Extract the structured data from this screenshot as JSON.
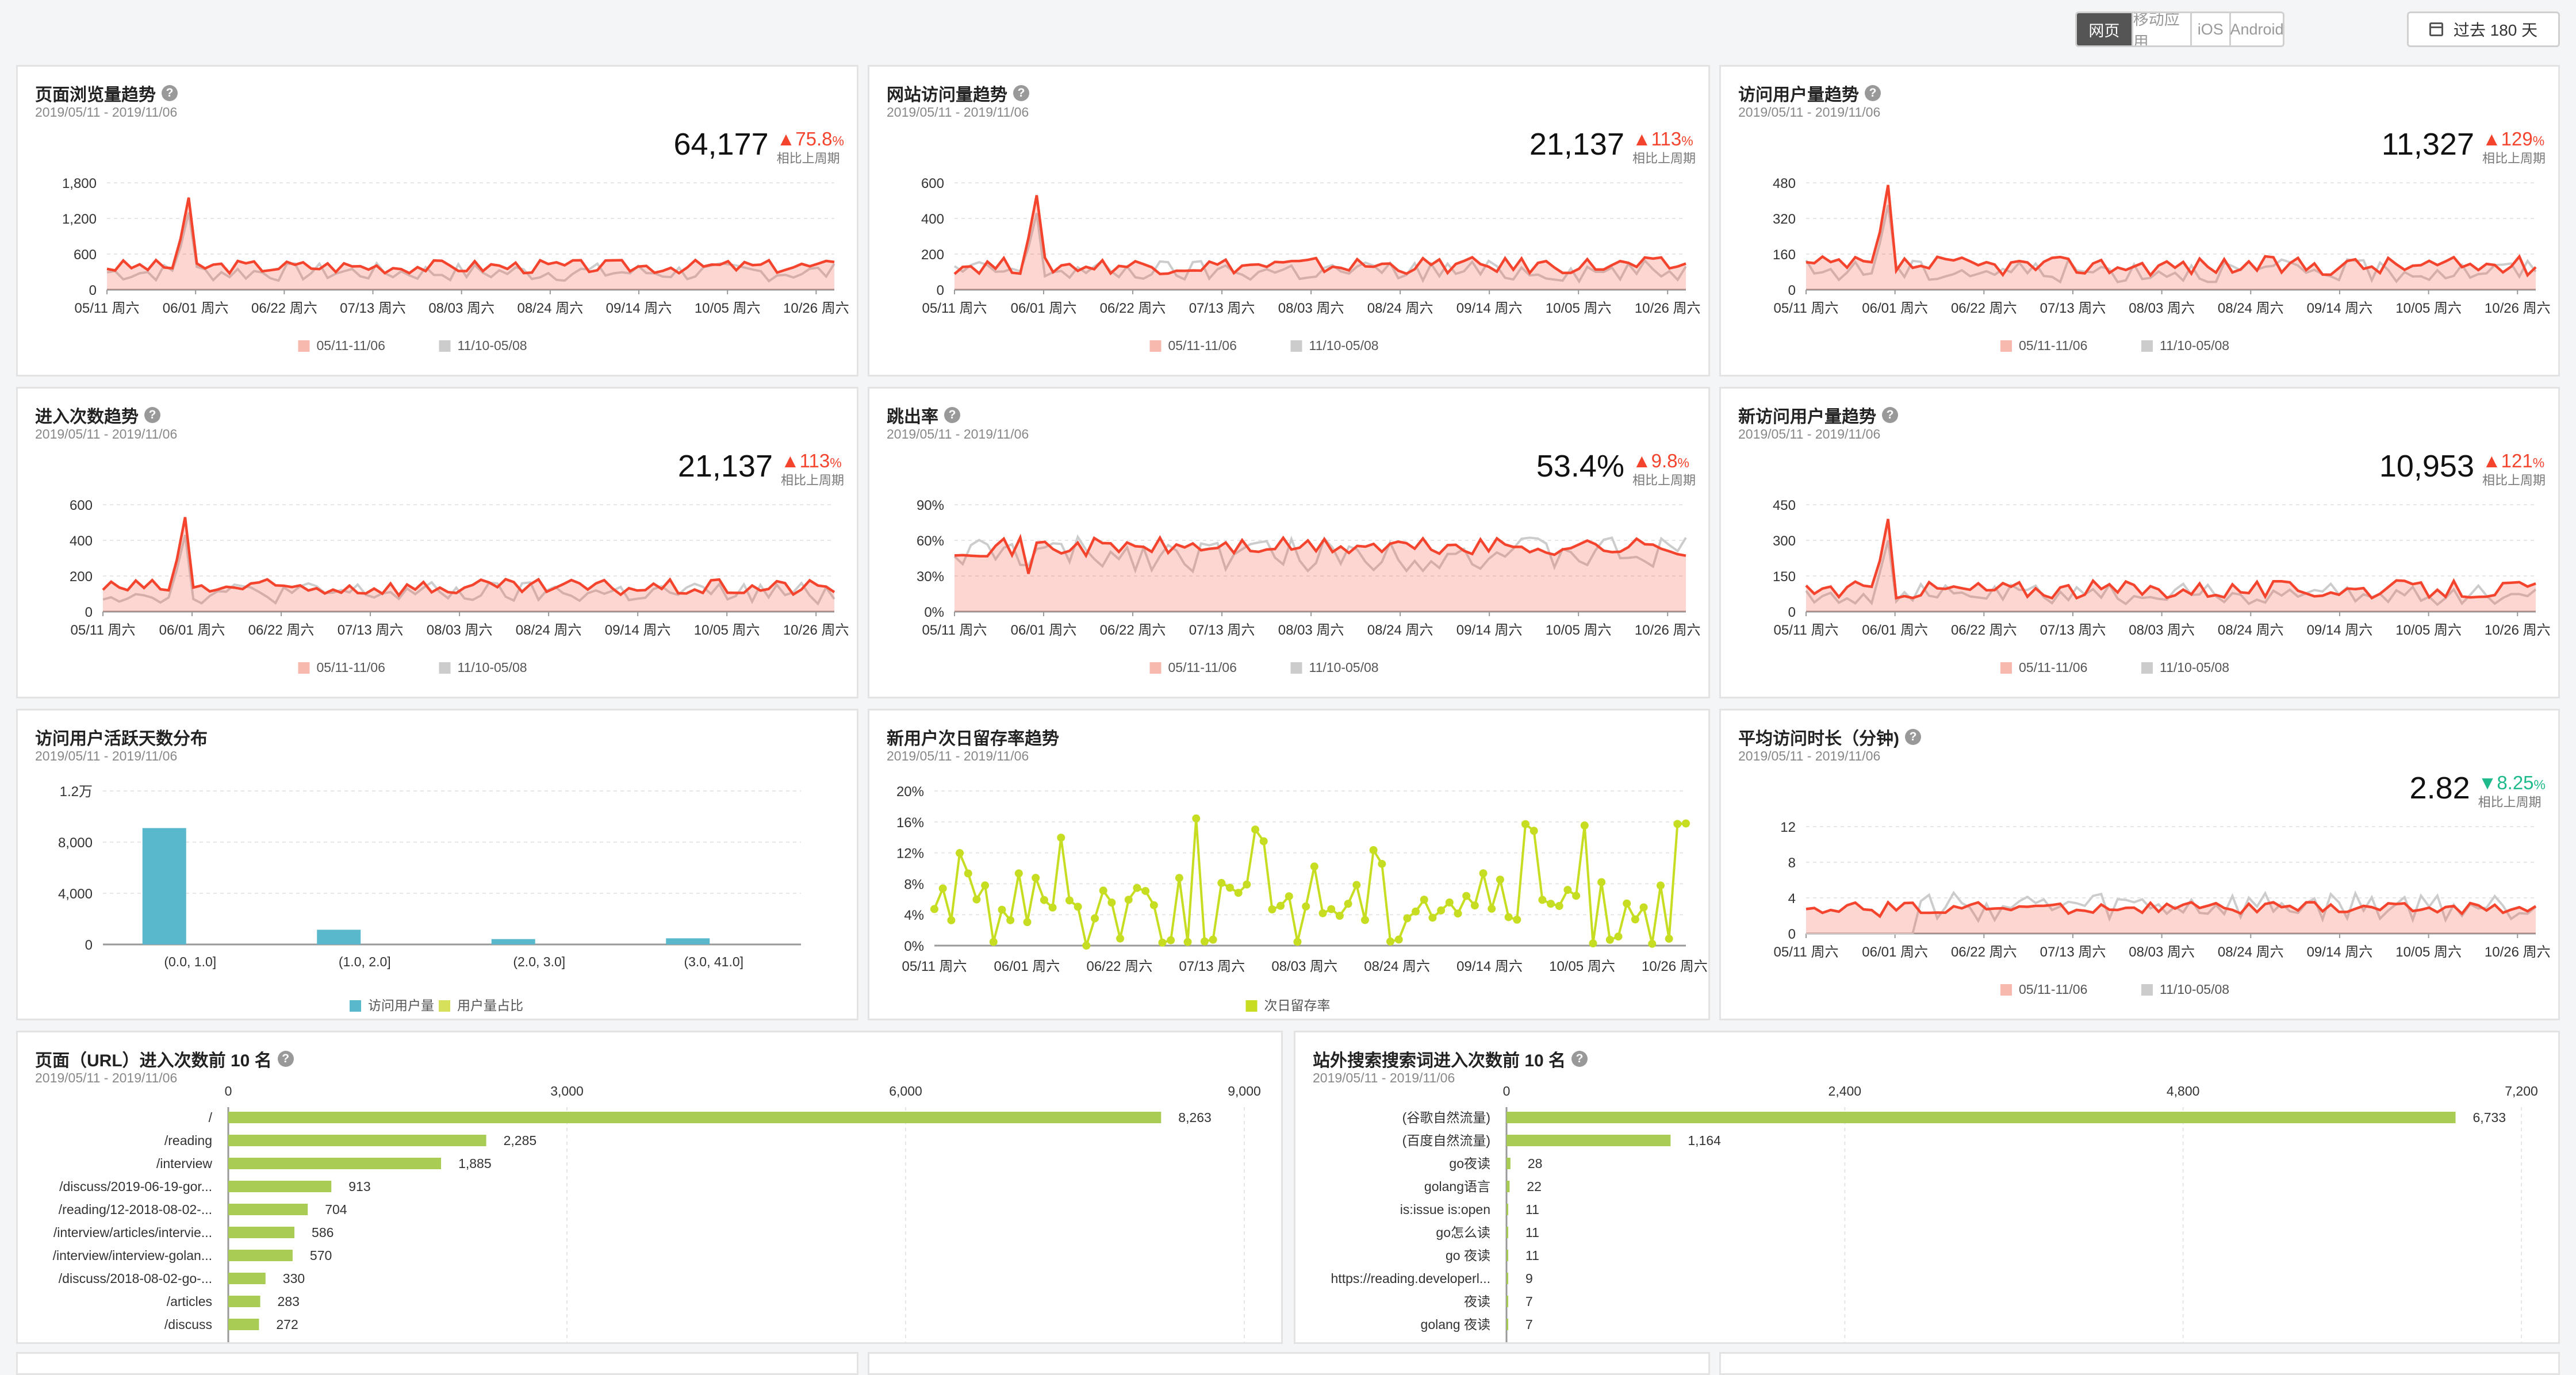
{
  "toolbar": {
    "tabs": [
      "网页",
      "移动应用",
      "iOS",
      "Android"
    ],
    "active_tab": "网页",
    "range_label": "过去 180 天"
  },
  "colors": {
    "accent": "#f5442d",
    "compare": "#cccccc",
    "bar_teal": "#5ab8cc",
    "bar_green": "#a9cd54",
    "retention": "#c6dd21",
    "down": "#1fba8c"
  },
  "trend_panels": [
    {
      "title": "页面浏览量趋势",
      "date": "2019/05/11 - 2019/11/06",
      "value": "64,177",
      "change": "75.8",
      "change_unit": "%",
      "direction": "up",
      "compare_label": "相比上周期",
      "legend": [
        "05/11-11/06",
        "11/10-05/08"
      ]
    },
    {
      "title": "网站访问量趋势",
      "date": "2019/05/11 - 2019/11/06",
      "value": "21,137",
      "change": "113",
      "change_unit": "%",
      "direction": "up",
      "compare_label": "相比上周期",
      "legend": [
        "05/11-11/06",
        "11/10-05/08"
      ]
    },
    {
      "title": "访问用户量趋势",
      "date": "2019/05/11 - 2019/11/06",
      "value": "11,327",
      "change": "129",
      "change_unit": "%",
      "direction": "up",
      "compare_label": "相比上周期",
      "legend": [
        "05/11-11/06",
        "11/10-05/08"
      ]
    },
    {
      "title": "进入次数趋势",
      "date": "2019/05/11 - 2019/11/06",
      "value": "21,137",
      "change": "113",
      "change_unit": "%",
      "direction": "up",
      "compare_label": "相比上周期",
      "legend": [
        "05/11-11/06",
        "11/10-05/08"
      ]
    },
    {
      "title": "跳出率",
      "date": "2019/05/11 - 2019/11/06",
      "value": "53.4%",
      "change": "9.8",
      "change_unit": "%",
      "direction": "up",
      "compare_label": "相比上周期",
      "legend": [
        "05/11-11/06",
        "11/10-05/08"
      ]
    },
    {
      "title": "新访问用户量趋势",
      "date": "2019/05/11 - 2019/11/06",
      "value": "10,953",
      "change": "121",
      "change_unit": "%",
      "direction": "up",
      "compare_label": "相比上周期",
      "legend": [
        "05/11-11/06",
        "11/10-05/08"
      ]
    },
    {
      "title": "平均访问时长（分钟)",
      "date": "2019/05/11 - 2019/11/06",
      "value": "2.82",
      "change": "8.25",
      "change_unit": "%",
      "direction": "down",
      "compare_label": "相比上周期",
      "legend": [
        "05/11-11/06",
        "11/10-05/08"
      ]
    }
  ],
  "bar_panel": {
    "title": "访问用户活跃天数分布",
    "date": "2019/05/11 - 2019/11/06",
    "legend": [
      "访问用户量",
      "用户量占比"
    ]
  },
  "retention_panel": {
    "title": "新用户次日留存率趋势",
    "date": "2019/05/11 - 2019/11/06",
    "legend": [
      "次日留存率"
    ]
  },
  "top_url_panel": {
    "title": "页面（URL）进入次数前 10 名",
    "date": "2019/05/11 - 2019/11/06"
  },
  "top_search_panel": {
    "title": "站外搜索搜索词进入次数前 10 名",
    "date": "2019/05/11 - 2019/11/06"
  },
  "chart_data": [
    {
      "id": "pv",
      "type": "line",
      "title": "页面浏览量趋势",
      "ylim": [
        0,
        1800
      ],
      "yticks": [
        "0",
        "600",
        "1,200",
        "1,800"
      ],
      "xticks": [
        "05/11 周六",
        "06/01 周六",
        "06/22 周六",
        "07/13 周六",
        "08/03 周六",
        "08/24 周六",
        "09/14 周六",
        "10/05 周六",
        "10/26 周六"
      ],
      "series": [
        {
          "name": "05/11-11/06",
          "base": 350,
          "spike": 1550,
          "min": 180,
          "max": 700
        },
        {
          "name": "11/10-05/08",
          "base": 250,
          "spike": 1300,
          "min": 0,
          "max": 700
        }
      ]
    },
    {
      "id": "visits",
      "type": "line",
      "title": "网站访问量趋势",
      "ylim": [
        0,
        600
      ],
      "yticks": [
        "0",
        "200",
        "400",
        "600"
      ],
      "xticks": [
        "05/11 周六",
        "06/01 周六",
        "06/22 周六",
        "07/13 周六",
        "08/03 周六",
        "08/24 周六",
        "09/14 周六",
        "10/05 周六",
        "10/26 周六"
      ],
      "series": [
        {
          "name": "05/11-11/06",
          "base": 110,
          "spike": 530,
          "min": 60,
          "max": 270
        },
        {
          "name": "11/10-05/08",
          "base": 80,
          "spike": 430,
          "min": 0,
          "max": 270
        }
      ]
    },
    {
      "id": "users",
      "type": "line",
      "title": "访问用户量趋势",
      "ylim": [
        0,
        480
      ],
      "yticks": [
        "0",
        "160",
        "320",
        "480"
      ],
      "xticks": [
        "05/11 周六",
        "06/01 周六",
        "06/22 周六",
        "07/13 周六",
        "08/03 周六",
        "08/24 周六",
        "09/14 周六",
        "10/05 周六",
        "10/26 周六"
      ],
      "series": [
        {
          "name": "05/11-11/06",
          "base": 85,
          "spike": 470,
          "min": 40,
          "max": 230
        },
        {
          "name": "11/10-05/08",
          "base": 60,
          "spike": 380,
          "min": 0,
          "max": 230
        }
      ]
    },
    {
      "id": "entries",
      "type": "line",
      "title": "进入次数趋势",
      "ylim": [
        0,
        600
      ],
      "yticks": [
        "0",
        "200",
        "400",
        "600"
      ],
      "xticks": [
        "05/11 周六",
        "06/01 周六",
        "06/22 周六",
        "07/13 周六",
        "08/03 周六",
        "08/24 周六",
        "09/14 周六",
        "10/05 周六",
        "10/26 周六"
      ],
      "series": [
        {
          "name": "05/11-11/06",
          "base": 110,
          "spike": 530,
          "min": 60,
          "max": 270
        },
        {
          "name": "11/10-05/08",
          "base": 80,
          "spike": 430,
          "min": 0,
          "max": 270
        }
      ]
    },
    {
      "id": "bounce",
      "type": "line",
      "title": "跳出率",
      "ylim": [
        0,
        90
      ],
      "yticks": [
        "0%",
        "30%",
        "60%",
        "90%"
      ],
      "xticks": [
        "05/11 周六",
        "06/01 周六",
        "06/22 周六",
        "07/13 周六",
        "08/03 周六",
        "08/24 周六",
        "09/14 周六",
        "10/05 周六",
        "10/26 周六"
      ],
      "series": [
        {
          "name": "05/11-11/06",
          "base": 52,
          "spike": 58,
          "min": 40,
          "max": 75
        },
        {
          "name": "11/10-05/08",
          "base": 45,
          "spike": 0,
          "min": 20,
          "max": 85
        }
      ]
    },
    {
      "id": "newusers",
      "type": "line",
      "title": "新访问用户量趋势",
      "ylim": [
        0,
        450
      ],
      "yticks": [
        "0",
        "150",
        "300",
        "450"
      ],
      "xticks": [
        "05/11 周六",
        "06/01 周六",
        "06/22 周六",
        "07/13 周六",
        "08/03 周六",
        "08/24 周六",
        "09/14 周六",
        "10/05 周六",
        "10/26 周六"
      ],
      "series": [
        {
          "name": "05/11-11/06",
          "base": 75,
          "spike": 390,
          "min": 30,
          "max": 200
        },
        {
          "name": "11/10-05/08",
          "base": 50,
          "spike": 300,
          "min": 0,
          "max": 200
        }
      ]
    },
    {
      "id": "duration",
      "type": "line",
      "title": "平均访问时长（分钟)",
      "ylim": [
        0,
        12
      ],
      "yticks": [
        "0",
        "4",
        "8",
        "12"
      ],
      "xticks": [
        "05/11 周六",
        "06/01 周六",
        "06/22 周六",
        "07/13 周六",
        "08/03 周六",
        "08/24 周六",
        "09/14 周六",
        "10/05 周六",
        "10/26 周六"
      ],
      "series": [
        {
          "name": "05/11-11/06",
          "base": 2.8,
          "spike": 3.5,
          "min": 1.5,
          "max": 4.5
        },
        {
          "name": "11/10-05/08",
          "base": 2.5,
          "spike": 0,
          "min": 0,
          "max": 7.5
        }
      ]
    },
    {
      "id": "active_days",
      "type": "bar",
      "title": "访问用户活跃天数分布",
      "categories": [
        "(0.0, 1.0]",
        "(1.0, 2.0]",
        "(2.0, 3.0]",
        "(3.0, 41.0]"
      ],
      "values": [
        9100,
        1150,
        420,
        480
      ],
      "ylim": [
        0,
        12000
      ],
      "yticks": [
        "0",
        "4,000",
        "8,000",
        "1.2万"
      ]
    },
    {
      "id": "retention",
      "type": "line",
      "title": "新用户次日留存率趋势",
      "ylim": [
        0,
        20
      ],
      "yticks": [
        "0%",
        "4%",
        "8%",
        "12%",
        "16%",
        "20%"
      ],
      "xticks": [
        "05/11 周六",
        "06/01 周六",
        "06/22 周六",
        "07/13 周六",
        "08/03 周六",
        "08/24 周六",
        "09/14 周六",
        "10/05 周六",
        "10/26 周六"
      ],
      "series": [
        {
          "name": "次日留存率",
          "min": 0,
          "max": 17
        }
      ]
    },
    {
      "id": "top_urls",
      "type": "bar",
      "orientation": "horizontal",
      "title": "页面（URL）进入次数前 10 名",
      "categories": [
        "/",
        "/reading",
        "/interview",
        "/discuss/2019-06-19-gor...",
        "/reading/12-2018-08-02-...",
        "/interview/articles/intervie...",
        "/interview/interview-golan...",
        "/discuss/2018-08-02-go-...",
        "/articles",
        "/discuss"
      ],
      "values": [
        8263,
        2285,
        1885,
        913,
        704,
        586,
        570,
        330,
        283,
        272
      ],
      "value_labels": [
        "8,263",
        "2,285",
        "1,885",
        "913",
        "704",
        "586",
        "570",
        "330",
        "283",
        "272"
      ],
      "xlim": [
        0,
        9000
      ],
      "xticks": [
        "0",
        "3,000",
        "6,000",
        "9,000"
      ]
    },
    {
      "id": "top_search",
      "type": "bar",
      "orientation": "horizontal",
      "title": "站外搜索搜索词进入次数前 10 名",
      "categories": [
        "(谷歌自然流量)",
        "(百度自然流量)",
        "go夜读",
        "golang语言",
        "is:issue is:open",
        "go怎么读",
        "go 夜读",
        "https://reading.developerl...",
        "夜读",
        "golang 夜读"
      ],
      "values": [
        6733,
        1164,
        28,
        22,
        11,
        11,
        11,
        9,
        7,
        7
      ],
      "value_labels": [
        "6,733",
        "1,164",
        "28",
        "22",
        "11",
        "11",
        "11",
        "9",
        "7",
        "7"
      ],
      "xlim": [
        0,
        7200
      ],
      "xticks": [
        "0",
        "2,400",
        "4,800",
        "7,200"
      ]
    }
  ]
}
